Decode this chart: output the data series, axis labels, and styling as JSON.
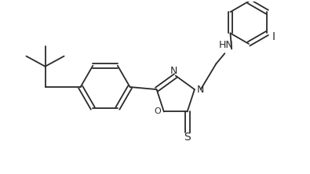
{
  "background_color": "#ffffff",
  "line_color": "#2a2a2a",
  "figsize": [
    3.95,
    2.22
  ],
  "dpi": 100,
  "xlim": [
    0,
    9.0
  ],
  "ylim": [
    0,
    5.0
  ]
}
